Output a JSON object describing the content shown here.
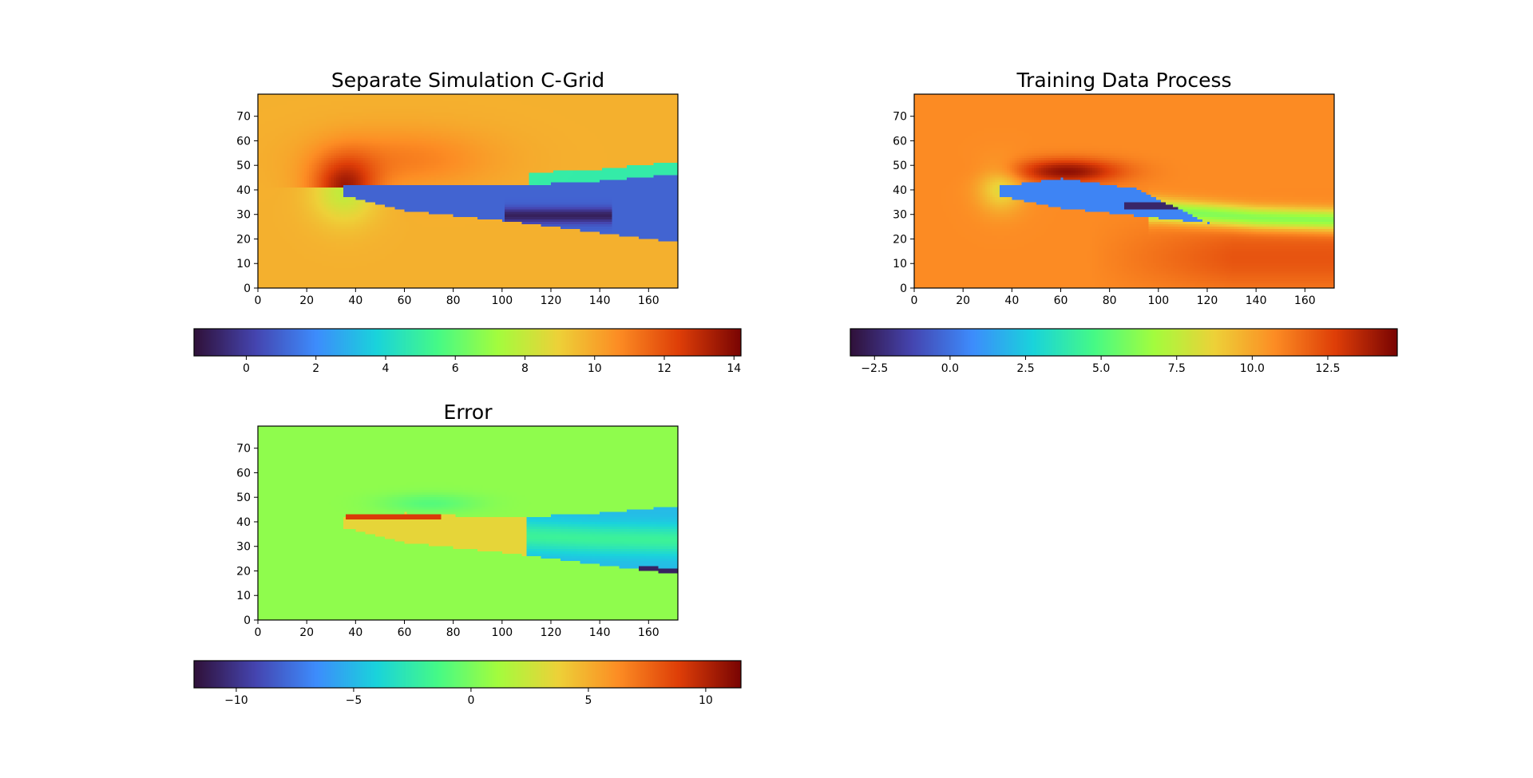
{
  "colormap": "turbo",
  "chart_data": [
    {
      "type": "heatmap",
      "title": "Separate Simulation C-Grid",
      "xlim": [
        0,
        172
      ],
      "ylim": [
        0,
        79
      ],
      "x_ticks": [
        0,
        20,
        40,
        60,
        80,
        100,
        120,
        140,
        160
      ],
      "y_ticks": [
        0,
        10,
        20,
        30,
        40,
        50,
        60,
        70
      ],
      "colorbar": {
        "range": [
          -1.5,
          14.2
        ],
        "ticks": [
          0,
          2,
          4,
          6,
          8,
          10,
          12,
          14
        ]
      },
      "field": {
        "background": 9.8,
        "wake_value": 1.0,
        "leading_edge_x": 35,
        "trailing_edge_x": 172,
        "upper_surface": [
          [
            35,
            41
          ],
          [
            60,
            41
          ],
          [
            100,
            41
          ],
          [
            140,
            43
          ],
          [
            172,
            46
          ]
        ],
        "lower_surface": [
          [
            35,
            37
          ],
          [
            60,
            31
          ],
          [
            100,
            27
          ],
          [
            140,
            22
          ],
          [
            172,
            18
          ]
        ]
      }
    },
    {
      "type": "heatmap",
      "title": "Training Data Process",
      "xlim": [
        0,
        172
      ],
      "ylim": [
        0,
        79
      ],
      "x_ticks": [
        0,
        20,
        40,
        60,
        80,
        100,
        120,
        140,
        160
      ],
      "y_ticks": [
        0,
        10,
        20,
        30,
        40,
        50,
        60,
        70
      ],
      "colorbar": {
        "range": [
          -3.3,
          14.8
        ],
        "ticks": [
          -2.5,
          0.0,
          2.5,
          5.0,
          7.5,
          10.0,
          12.5
        ]
      },
      "field": {
        "background": 10.8,
        "wake_value": 0.5,
        "leading_edge_x": 35,
        "trailing_edge_x": 120,
        "upper_surface": [
          [
            35,
            41
          ],
          [
            60,
            44
          ],
          [
            90,
            40
          ],
          [
            120,
            26
          ]
        ],
        "lower_surface": [
          [
            35,
            37
          ],
          [
            60,
            32
          ],
          [
            90,
            29
          ],
          [
            120,
            26
          ]
        ]
      }
    },
    {
      "type": "heatmap",
      "title": "Error",
      "xlim": [
        0,
        172
      ],
      "ylim": [
        0,
        79
      ],
      "x_ticks": [
        0,
        20,
        40,
        60,
        80,
        100,
        120,
        140,
        160
      ],
      "y_ticks": [
        0,
        10,
        20,
        30,
        40,
        50,
        60,
        70
      ],
      "colorbar": {
        "range": [
          -11.8,
          11.5
        ],
        "ticks": [
          -10,
          -5,
          0,
          5,
          10
        ]
      },
      "field": {
        "background": 0.0,
        "wake_value": -5.0,
        "leading_edge_x": 35,
        "trailing_edge_x": 172,
        "upper_surface": [
          [
            35,
            41
          ],
          [
            60,
            43
          ],
          [
            100,
            41
          ],
          [
            140,
            43
          ],
          [
            172,
            46
          ]
        ],
        "lower_surface": [
          [
            35,
            37
          ],
          [
            60,
            31
          ],
          [
            100,
            27
          ],
          [
            140,
            22
          ],
          [
            172,
            18
          ]
        ]
      }
    }
  ]
}
